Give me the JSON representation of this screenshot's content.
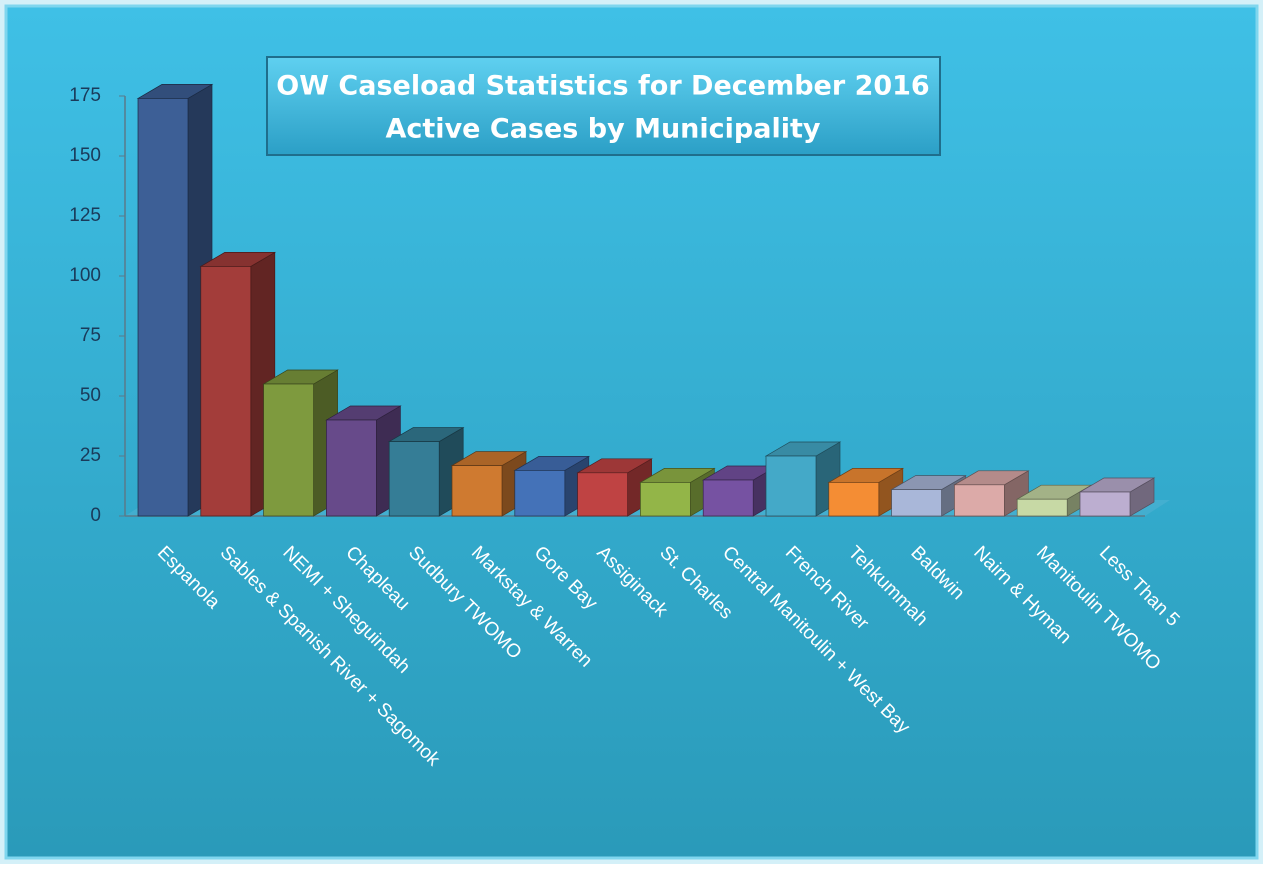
{
  "chart_data": {
    "type": "bar",
    "title": "OW Caseload Statistics for December 2016",
    "subtitle": "Active Cases by Municipality",
    "categories": [
      "Espanola",
      "Sables & Spanish River + Sagomok",
      "NEMI + Sheguindah",
      "Chapleau",
      "Sudbury TWOMO",
      "Markstay & Warren",
      "Gore Bay",
      "Assiginack",
      "St. Charles",
      "Central Manitoulin + West Bay",
      "French River",
      "Tehkummah",
      "Baldwin",
      "Nairn & Hyman",
      "Manitoulin TWOMO",
      "Less Than 5"
    ],
    "values": [
      174,
      104,
      55,
      40,
      31,
      21,
      19,
      18,
      14,
      15,
      25,
      14,
      11,
      13,
      7,
      10
    ],
    "colors": [
      "#3d5f96",
      "#a33d3a",
      "#7e9a3e",
      "#674a8a",
      "#357d96",
      "#cf7a30",
      "#4472b8",
      "#bf4343",
      "#93b548",
      "#7652a2",
      "#44a9c8",
      "#f48d34",
      "#a9b7d9",
      "#dcaaa8",
      "#c7d9a5",
      "#bcaed0"
    ],
    "ylim": [
      0,
      175
    ],
    "yticks": [
      0,
      25,
      50,
      75,
      100,
      125,
      150,
      175
    ]
  }
}
